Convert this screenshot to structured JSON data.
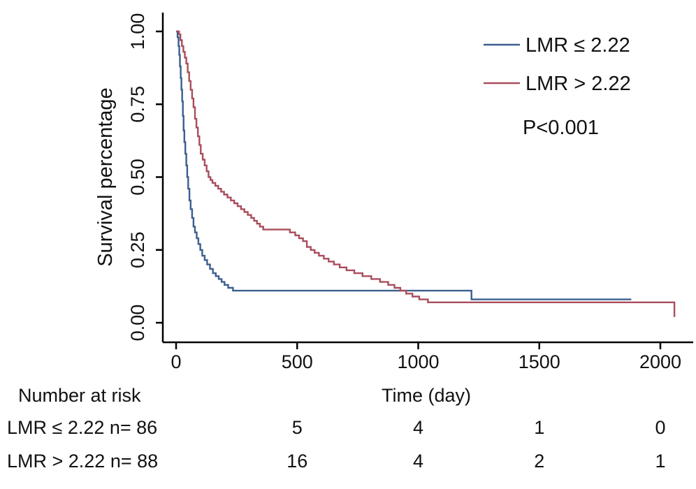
{
  "figure": {
    "background": "#ffffff",
    "text_color": "#111111",
    "axis_color": "#000000"
  },
  "chart_data": {
    "type": "line",
    "subtype": "kaplan-meier-step",
    "title": "",
    "xlabel": "Time (day)",
    "ylabel": "Survival percentage",
    "xlim": [
      0,
      2070
    ],
    "ylim": [
      0.0,
      1.0
    ],
    "xticks": [
      0,
      500,
      1000,
      1500,
      2000
    ],
    "xtick_labels": [
      "0",
      "500",
      "1000",
      "1500",
      "2000"
    ],
    "yticks": [
      0.0,
      0.25,
      0.5,
      0.75,
      1.0
    ],
    "ytick_labels": [
      "0.00",
      "0.25",
      "0.50",
      "0.75",
      "1.00"
    ],
    "grid": false,
    "legend_position": "top-right",
    "annotation": "P<0.001",
    "series": [
      {
        "name": "LMR ≤ 2.22",
        "color": "#3a5f8f",
        "points": [
          [
            0,
            1.0
          ],
          [
            6,
            0.98
          ],
          [
            10,
            0.95
          ],
          [
            13,
            0.92
          ],
          [
            16,
            0.88
          ],
          [
            19,
            0.84
          ],
          [
            22,
            0.8
          ],
          [
            25,
            0.76
          ],
          [
            28,
            0.71
          ],
          [
            31,
            0.66
          ],
          [
            34,
            0.62
          ],
          [
            38,
            0.58
          ],
          [
            42,
            0.54
          ],
          [
            46,
            0.5
          ],
          [
            50,
            0.46
          ],
          [
            55,
            0.42
          ],
          [
            60,
            0.39
          ],
          [
            66,
            0.36
          ],
          [
            72,
            0.33
          ],
          [
            78,
            0.31
          ],
          [
            85,
            0.29
          ],
          [
            92,
            0.27
          ],
          [
            100,
            0.25
          ],
          [
            108,
            0.23
          ],
          [
            118,
            0.215
          ],
          [
            128,
            0.2
          ],
          [
            140,
            0.185
          ],
          [
            152,
            0.17
          ],
          [
            164,
            0.16
          ],
          [
            176,
            0.15
          ],
          [
            188,
            0.14
          ],
          [
            200,
            0.13
          ],
          [
            215,
            0.12
          ],
          [
            235,
            0.11
          ],
          [
            1220,
            0.08
          ],
          [
            1880,
            0.08
          ]
        ]
      },
      {
        "name": "LMR > 2.22",
        "color": "#a94d5c",
        "points": [
          [
            0,
            1.0
          ],
          [
            12,
            0.99
          ],
          [
            18,
            0.97
          ],
          [
            24,
            0.95
          ],
          [
            30,
            0.93
          ],
          [
            36,
            0.91
          ],
          [
            42,
            0.89
          ],
          [
            48,
            0.86
          ],
          [
            54,
            0.83
          ],
          [
            60,
            0.8
          ],
          [
            66,
            0.77
          ],
          [
            72,
            0.74
          ],
          [
            78,
            0.7
          ],
          [
            84,
            0.67
          ],
          [
            90,
            0.64
          ],
          [
            96,
            0.61
          ],
          [
            102,
            0.58
          ],
          [
            110,
            0.56
          ],
          [
            118,
            0.54
          ],
          [
            126,
            0.52
          ],
          [
            134,
            0.5
          ],
          [
            142,
            0.49
          ],
          [
            150,
            0.48
          ],
          [
            162,
            0.47
          ],
          [
            174,
            0.46
          ],
          [
            186,
            0.45
          ],
          [
            198,
            0.44
          ],
          [
            212,
            0.43
          ],
          [
            226,
            0.42
          ],
          [
            240,
            0.41
          ],
          [
            254,
            0.4
          ],
          [
            268,
            0.39
          ],
          [
            282,
            0.38
          ],
          [
            296,
            0.37
          ],
          [
            310,
            0.36
          ],
          [
            322,
            0.35
          ],
          [
            334,
            0.34
          ],
          [
            346,
            0.33
          ],
          [
            360,
            0.32
          ],
          [
            470,
            0.31
          ],
          [
            492,
            0.3
          ],
          [
            508,
            0.29
          ],
          [
            524,
            0.28
          ],
          [
            540,
            0.26
          ],
          [
            556,
            0.25
          ],
          [
            572,
            0.24
          ],
          [
            590,
            0.23
          ],
          [
            610,
            0.22
          ],
          [
            630,
            0.21
          ],
          [
            652,
            0.2
          ],
          [
            676,
            0.19
          ],
          [
            704,
            0.18
          ],
          [
            736,
            0.17
          ],
          [
            770,
            0.16
          ],
          [
            806,
            0.15
          ],
          [
            842,
            0.14
          ],
          [
            876,
            0.13
          ],
          [
            902,
            0.12
          ],
          [
            926,
            0.11
          ],
          [
            950,
            0.1
          ],
          [
            976,
            0.09
          ],
          [
            1004,
            0.08
          ],
          [
            1040,
            0.07
          ],
          [
            2050,
            0.07
          ],
          [
            2058,
            0.02
          ]
        ]
      }
    ]
  },
  "risk_table": {
    "header": "Number at risk",
    "time_points": [
      500,
      1000,
      1500,
      2000
    ],
    "rows": [
      {
        "label": "LMR ≤ 2.22 n= 86",
        "values": [
          "5",
          "4",
          "1",
          "0"
        ]
      },
      {
        "label": "LMR > 2.22 n= 88",
        "values": [
          "16",
          "4",
          "2",
          "1"
        ]
      }
    ]
  }
}
